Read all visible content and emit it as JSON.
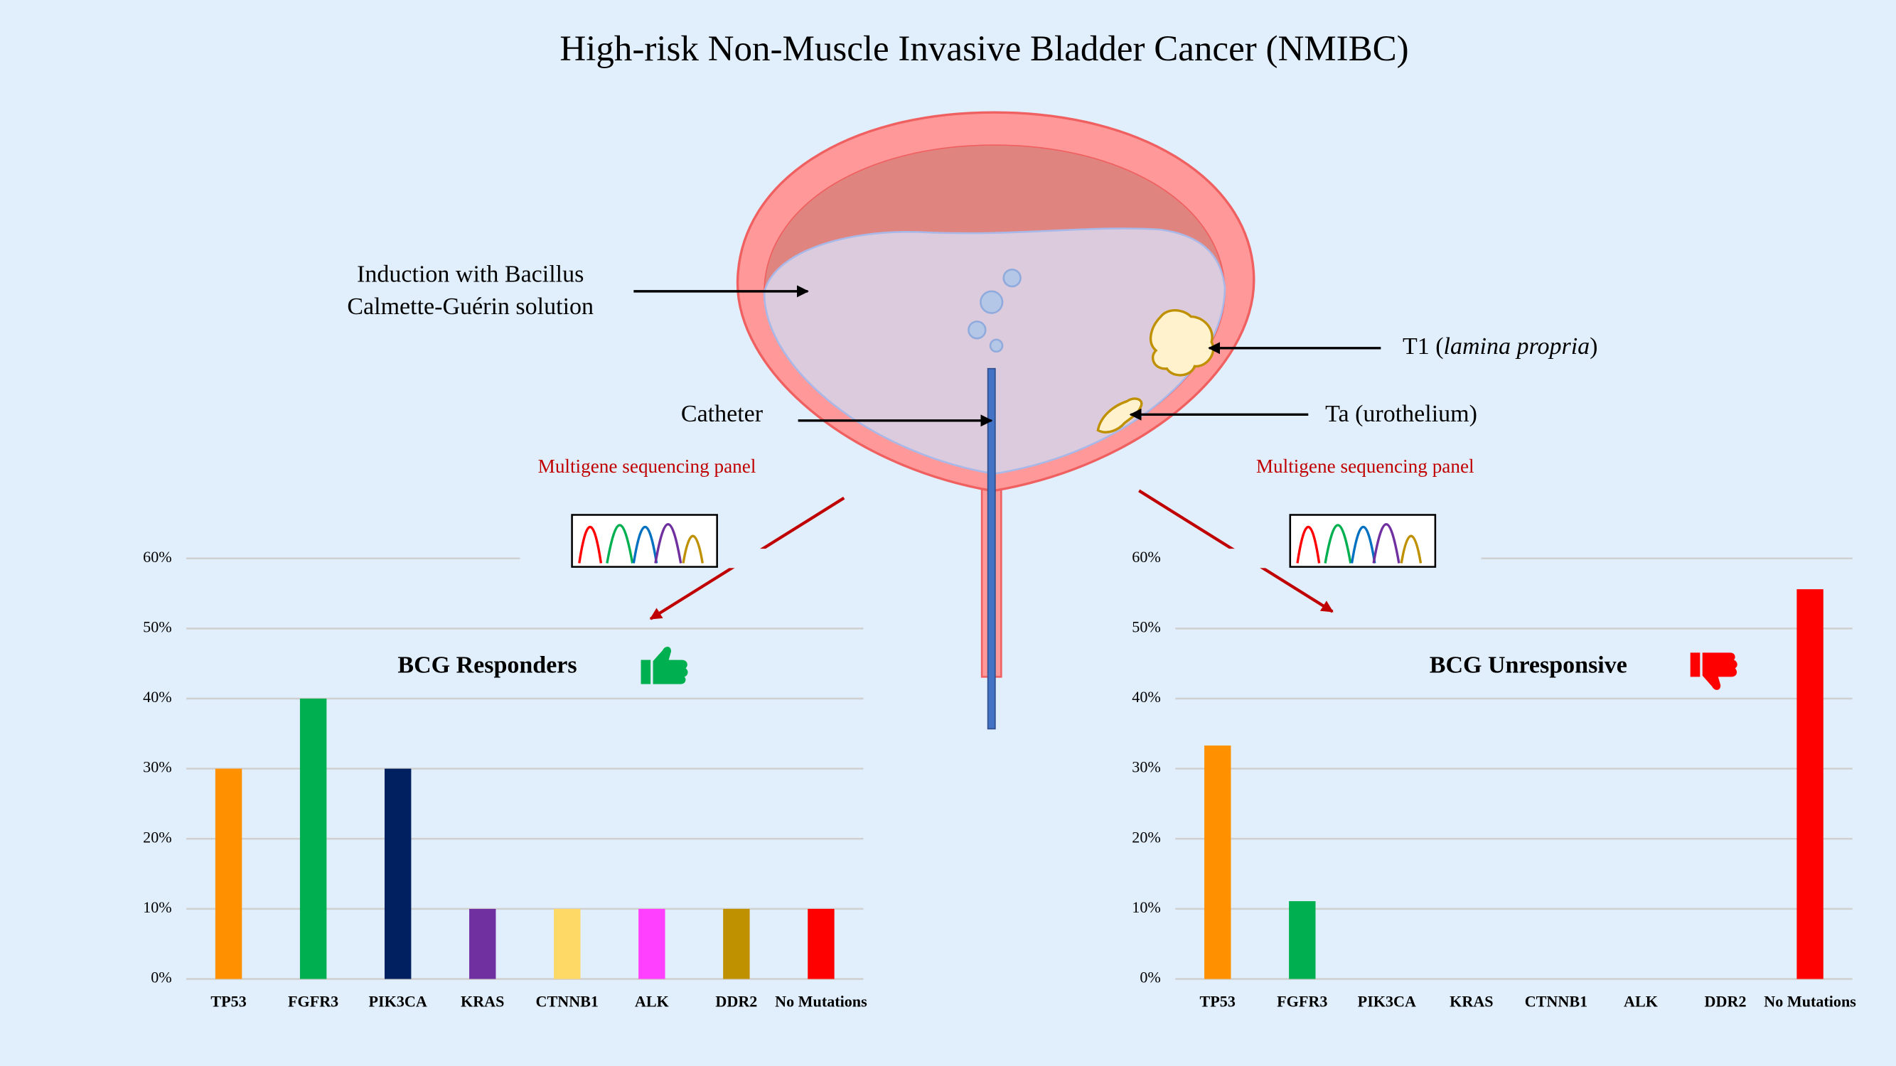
{
  "title": "High-risk Non-Muscle Invasive Bladder Cancer (NMIBC)",
  "diagram": {
    "induction": "Induction with Bacillus Calmette-Guérin solution",
    "catheter": "Catheter",
    "t1": {
      "prefix": "T1 (",
      "italic": "lamina propria",
      "suffix": ")"
    },
    "ta": "Ta (urothelium)",
    "panel_labels": [
      "Multigene sequencing panel",
      "Multigene sequencing panel"
    ]
  },
  "chart_data": [
    {
      "type": "bar",
      "title": "BCG Responders",
      "categories": [
        "TP53",
        "FGFR3",
        "PIK3CA",
        "KRAS",
        "CTNNB1",
        "ALK",
        "DDR2",
        "No Mutations"
      ],
      "values": [
        30,
        40,
        30,
        10,
        10,
        10,
        10,
        10
      ],
      "colors": [
        "#ff9000",
        "#00b050",
        "#002060",
        "#7030a0",
        "#ffd966",
        "#ff40ff",
        "#bf9000",
        "#ff0000"
      ],
      "ylim": [
        0,
        60
      ],
      "yticks": [
        {
          "value": 0,
          "label": "0%"
        },
        {
          "value": 10,
          "label": "10%"
        },
        {
          "value": 20,
          "label": "20%"
        },
        {
          "value": 30,
          "label": "30%"
        },
        {
          "value": 40,
          "label": "40%"
        },
        {
          "value": 50,
          "label": "50%"
        },
        {
          "value": 60,
          "label": "60%"
        }
      ],
      "grid": true
    },
    {
      "type": "bar",
      "title": "BCG Unresponsive",
      "categories": [
        "TP53",
        "FGFR3",
        "PIK3CA",
        "KRAS",
        "CTNNB1",
        "ALK",
        "DDR2",
        "No Mutations"
      ],
      "values": [
        33.3,
        11.1,
        0,
        0,
        0,
        0,
        0,
        55.6
      ],
      "colors": [
        "#ff9000",
        "#00b050",
        "#002060",
        "#7030a0",
        "#ffd966",
        "#ff40ff",
        "#bf9000",
        "#ff0000"
      ],
      "ylim": [
        0,
        60
      ],
      "yticks": [
        {
          "value": 0,
          "label": "0%"
        },
        {
          "value": 10,
          "label": "10%"
        },
        {
          "value": 20,
          "label": "20%"
        },
        {
          "value": 30,
          "label": "30%"
        },
        {
          "value": 40,
          "label": "40%"
        },
        {
          "value": 50,
          "label": "50%"
        },
        {
          "value": 60,
          "label": "60%"
        }
      ],
      "grid": true
    }
  ]
}
